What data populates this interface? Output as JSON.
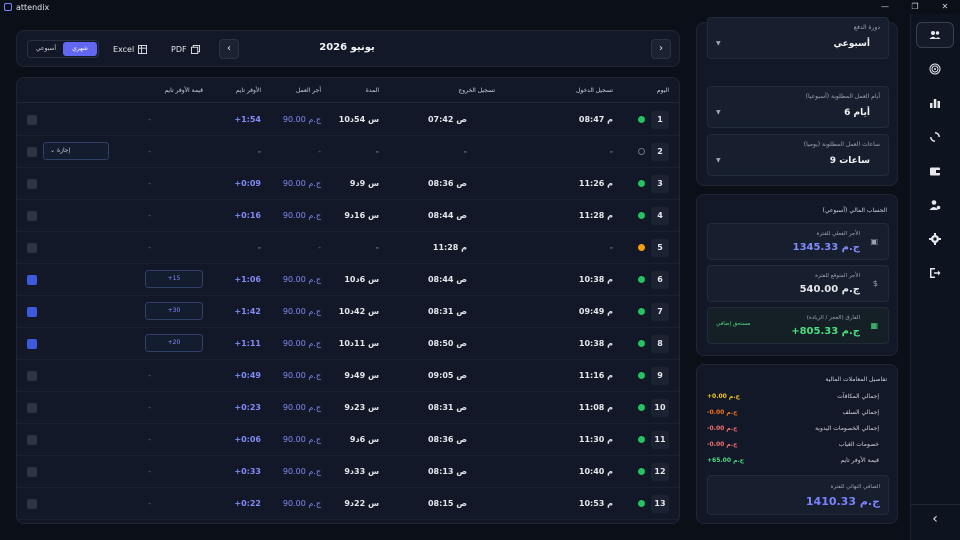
{
  "window": {
    "title": "attendix",
    "controls": [
      "—",
      "❐",
      "✕"
    ]
  },
  "toolbar": {
    "view_weekly": "أسبوعي",
    "view_monthly": "شهري",
    "excel": "Excel",
    "pdf": "PDF",
    "month_title": "يونيو 2026"
  },
  "table": {
    "headers": {
      "day": "اليوم",
      "check_in": "تسجيل الدخول",
      "check_out": "تسجيل الخروج",
      "duration": "المدة",
      "wage": "أجر العمل",
      "overtime": "الأوفر تايم",
      "overtime_value": "قيمة الأوفر تايم"
    },
    "rows": [
      {
        "day": "1",
        "status": "present",
        "in": "08:47 م",
        "out": "07:42 ص",
        "duration": "10س 54د",
        "wage": "90.00 ج.م",
        "ot": "+1:54",
        "otv": "-",
        "doc": "gray"
      },
      {
        "day": "2",
        "status": "absent",
        "in": "-",
        "out": "-",
        "duration": "-",
        "wage": "-",
        "ot": "-",
        "otv": "-",
        "leave": "إجازة",
        "doc": "gray"
      },
      {
        "day": "3",
        "status": "present",
        "in": "11:26 م",
        "out": "08:36 ص",
        "duration": "9س 9د",
        "wage": "90.00 ج.م",
        "ot": "+0:09",
        "otv": "-",
        "doc": "gray"
      },
      {
        "day": "4",
        "status": "present",
        "in": "11:28 م",
        "out": "08:44 ص",
        "duration": "9س 16د",
        "wage": "90.00 ج.م",
        "ot": "+0:16",
        "otv": "-",
        "doc": "gray"
      },
      {
        "day": "5",
        "status": "partial",
        "in": "-",
        "out": "11:28 م",
        "duration": "-",
        "wage": "-",
        "ot": "-",
        "otv": "-",
        "doc": "gray"
      },
      {
        "day": "6",
        "status": "present",
        "in": "10:38 م",
        "out": "08:44 ص",
        "duration": "10س 6د",
        "wage": "90.00 ج.م",
        "ot": "+1:06",
        "otv_box": "+15",
        "doc": "blue"
      },
      {
        "day": "7",
        "status": "present",
        "in": "09:49 م",
        "out": "08:31 ص",
        "duration": "10س 42د",
        "wage": "90.00 ج.م",
        "ot": "+1:42",
        "otv_box": "+30",
        "doc": "blue"
      },
      {
        "day": "8",
        "status": "present",
        "in": "10:38 م",
        "out": "08:50 ص",
        "duration": "10س 11د",
        "wage": "90.00 ج.م",
        "ot": "+1:11",
        "otv_box": "+20",
        "doc": "blue"
      },
      {
        "day": "9",
        "status": "present",
        "in": "11:16 م",
        "out": "09:05 ص",
        "duration": "9س 49د",
        "wage": "90.00 ج.م",
        "ot": "+0:49",
        "otv": "-",
        "doc": "gray"
      },
      {
        "day": "10",
        "status": "present",
        "in": "11:08 م",
        "out": "08:31 ص",
        "duration": "9س 23د",
        "wage": "90.00 ج.م",
        "ot": "+0:23",
        "otv": "-",
        "doc": "gray"
      },
      {
        "day": "11",
        "status": "present",
        "in": "11:30 م",
        "out": "08:36 ص",
        "duration": "9س 6د",
        "wage": "90.00 ج.م",
        "ot": "+0:06",
        "otv": "-",
        "doc": "gray"
      },
      {
        "day": "12",
        "status": "present",
        "in": "10:40 م",
        "out": "08:13 ص",
        "duration": "9س 33د",
        "wage": "90.00 ج.م",
        "ot": "+0:33",
        "otv": "-",
        "doc": "gray"
      },
      {
        "day": "13",
        "status": "present",
        "in": "10:53 م",
        "out": "08:15 ص",
        "duration": "9س 22د",
        "wage": "90.00 ج.م",
        "ot": "+0:22",
        "otv": "-",
        "doc": "gray"
      }
    ]
  },
  "settings": {
    "pay_cycle_label": "دورة الدفع",
    "pay_cycle_value": "أسبوعي",
    "work_days_label": "أيام العمل المطلوبة (أسبوعيا)",
    "work_days_value": "6 أيام",
    "work_hours_label": "ساعات العمل المطلوبة (يوميا)",
    "work_hours_value": "9 ساعات"
  },
  "finance": {
    "title": "الحساب المالي (أسبوعي)",
    "actual_label": "الأجر الفعلي للفترة",
    "actual_value": "1345.33 ج.م",
    "expected_label": "الأجر المتوقع للفترة",
    "expected_value": "540.00 ج.م",
    "diff_label": "الفارق (العجز / الزيادة)",
    "diff_value": "+805.33 ج.م",
    "diff_tag": "مستحق إضافي"
  },
  "transactions": {
    "title": "تفاصيل المعاملات المالية",
    "rows": [
      {
        "label": "إجمالي المكافآت",
        "value": "+0.00 ج.م",
        "color": "#facc15"
      },
      {
        "label": "إجمالي السلف",
        "value": "-0.00 ج.م",
        "color": "#f97316"
      },
      {
        "label": "إجمالي الخصومات اليدوية",
        "value": "-0.00 ج.م",
        "color": "#f87171"
      },
      {
        "label": "خصومات الغياب",
        "value": "-0.00 ج.م",
        "color": "#f87171"
      },
      {
        "label": "قيمة الأوفر تايم",
        "value": "+65.00 ج.م",
        "color": "#4ade80"
      }
    ],
    "final_label": "الصافي النهائي للفترة",
    "final_value": "1410.33 ج.م"
  },
  "nav": {
    "icons": [
      "users-icon",
      "fingerprint-icon",
      "chart-icon",
      "sync-icon",
      "wallet-icon",
      "user-settings-icon",
      "gear-icon",
      "logout-icon",
      "collapse-icon"
    ]
  }
}
